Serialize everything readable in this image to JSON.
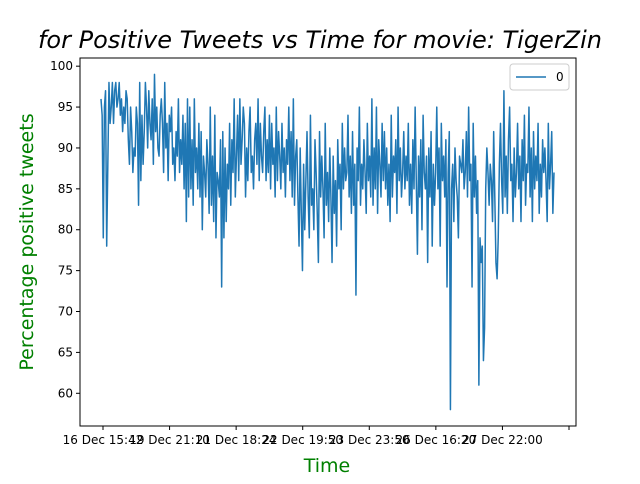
{
  "chart_data": {
    "type": "line",
    "title": "for Positive Tweets vs Time for movie: TigerZin",
    "xlabel": "Time",
    "ylabel": "Percentage positive tweets",
    "ylim": [
      56,
      101
    ],
    "yticks": [
      60,
      65,
      70,
      75,
      80,
      85,
      90,
      95,
      100
    ],
    "xticks": [
      "16 Dec 15:42",
      "19 Dec 21:10",
      "21 Dec 18:24",
      "22 Dec 19:50",
      "23 Dec 23:50",
      "26 Dec 16:20",
      "27 Dec 22:00",
      ""
    ],
    "legend": {
      "position": "top-right",
      "entries": [
        "0"
      ]
    },
    "grid": false,
    "colors": {
      "line": "#1f77b4",
      "title": "#000000",
      "axis_label": "#008000"
    },
    "series": [
      {
        "name": "0",
        "values": [
          96,
          94,
          79,
          95,
          97,
          78,
          88,
          98,
          93,
          95,
          98,
          93,
          97,
          98,
          95,
          96,
          98,
          94,
          96,
          92,
          95,
          93,
          97,
          96,
          91,
          88,
          95,
          92,
          87,
          90,
          89,
          95,
          93,
          83,
          98,
          86,
          94,
          88,
          92,
          98,
          95,
          90,
          97,
          93,
          91,
          96,
          88,
          99,
          92,
          95,
          90,
          89,
          94,
          96,
          93,
          87,
          98,
          90,
          93,
          86,
          94,
          92,
          95,
          88,
          90,
          86,
          92,
          89,
          96,
          87,
          91,
          88,
          94,
          85,
          93,
          81,
          96,
          84,
          95,
          85,
          91,
          83,
          96,
          87,
          90,
          85,
          93,
          84,
          92,
          80,
          89,
          87,
          84,
          91,
          88,
          82,
          95,
          83,
          89,
          81,
          94,
          79,
          87,
          86,
          84,
          91,
          73,
          92,
          79,
          90,
          81,
          88,
          85,
          93,
          83,
          91,
          87,
          96,
          84,
          89,
          94,
          86,
          96,
          88,
          91,
          95,
          93,
          84,
          90,
          86,
          92,
          95,
          87,
          89,
          85,
          91,
          93,
          88,
          96,
          86,
          93,
          89,
          87,
          92,
          95,
          86,
          91,
          87,
          94,
          85,
          93,
          88,
          90,
          84,
          95,
          86,
          92,
          89,
          85,
          93,
          87,
          90,
          84,
          91,
          88,
          95,
          86,
          92,
          84,
          96,
          83,
          89,
          91,
          84,
          78,
          90,
          82,
          75,
          88,
          80,
          86,
          92,
          84,
          79,
          94,
          83,
          85,
          80,
          91,
          87,
          82,
          76,
          92,
          84,
          89,
          85,
          79,
          93,
          83,
          87,
          81,
          90,
          84,
          76,
          89,
          82,
          86,
          78,
          91,
          85,
          88,
          80,
          93,
          85,
          90,
          86,
          87,
          94,
          84,
          89,
          82,
          92,
          83,
          88,
          72,
          90,
          86,
          95,
          83,
          88,
          85,
          91,
          87,
          82,
          93,
          86,
          89,
          84,
          96,
          83,
          90,
          85,
          95,
          82,
          91,
          88,
          84,
          93,
          86,
          92,
          85,
          90,
          83,
          88,
          81,
          94,
          84,
          89,
          87,
          91,
          82,
          95,
          86,
          90,
          84,
          87,
          92,
          85,
          89,
          86,
          93,
          83,
          88,
          82,
          91,
          85,
          95,
          86,
          77,
          89,
          84,
          91,
          80,
          94,
          87,
          85,
          89,
          76,
          90,
          84,
          92,
          78,
          88,
          83,
          87,
          95,
          85,
          90,
          78,
          93,
          86,
          89,
          84,
          91,
          73,
          87,
          92,
          58,
          85,
          88,
          81,
          90,
          86,
          84,
          79,
          89,
          88,
          87,
          91,
          85,
          87,
          92,
          84,
          95,
          86,
          88,
          73,
          93,
          84,
          89,
          82,
          86,
          61,
          79,
          76,
          78,
          64,
          68,
          85,
          90,
          87,
          83,
          88,
          86,
          81,
          92,
          84,
          76,
          74,
          79,
          88,
          93,
          86,
          82,
          97,
          84,
          89,
          82,
          91,
          95,
          86,
          88,
          81,
          90,
          84,
          87,
          93,
          85,
          89,
          81,
          91,
          86,
          94,
          83,
          88,
          87,
          95,
          84,
          90,
          81,
          92,
          85,
          89,
          86,
          93,
          82,
          88,
          84,
          91,
          87,
          90,
          86,
          81,
          93,
          85,
          88,
          92,
          82,
          87
        ]
      }
    ]
  }
}
